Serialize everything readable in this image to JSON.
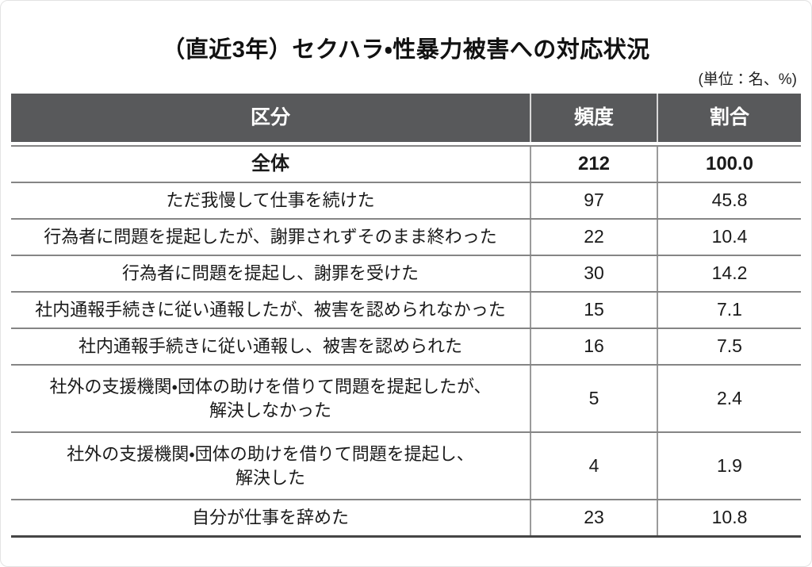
{
  "page": {
    "title": "（直近3年）セクハラ・性暴力被害への対応状況",
    "unit_note": "(単位：名、%)"
  },
  "table": {
    "headers": {
      "category": "区分",
      "frequency": "頻度",
      "ratio": "割合"
    },
    "rows": [
      {
        "label": "全体",
        "freq": "212",
        "pct": "100.0"
      },
      {
        "label": "ただ我慢して仕事を続けた",
        "freq": "97",
        "pct": "45.8"
      },
      {
        "label": "行為者に問題を提起したが、謝罪されずそのまま終わった",
        "freq": "22",
        "pct": "10.4"
      },
      {
        "label": "行為者に問題を提起し、謝罪を受けた",
        "freq": "30",
        "pct": "14.2"
      },
      {
        "label": "社内通報手続きに従い通報したが、被害を認められなかった",
        "freq": "15",
        "pct": "7.1"
      },
      {
        "label": "社内通報手続きに従い通報し、被害を認められた",
        "freq": "16",
        "pct": "7.5"
      },
      {
        "label": "社外の支援機関・団体の助けを借りて問題を提起したが、\n解決しなかった",
        "freq": "5",
        "pct": "2.4"
      },
      {
        "label": "社外の支援機関・団体の助けを借りて問題を提起し、\n解決した",
        "freq": "4",
        "pct": "1.9"
      },
      {
        "label": "自分が仕事を辞めた",
        "freq": "23",
        "pct": "10.8"
      }
    ]
  },
  "colors": {
    "header_bg": "#58595b",
    "header_text": "#ffffff",
    "row_separator": "#858585",
    "bottom_border": "#454545",
    "text": "#1a1a1a"
  },
  "chart_data": {
    "type": "table",
    "title": "（直近3年）セクハラ・性暴力被害への対応状況",
    "unit": "名、%",
    "columns": [
      "区分",
      "頻度",
      "割合"
    ],
    "rows": [
      [
        "全体",
        212,
        100.0
      ],
      [
        "ただ我慢して仕事を続けた",
        97,
        45.8
      ],
      [
        "行為者に問題を提起したが、謝罪されずそのまま終わった",
        22,
        10.4
      ],
      [
        "行為者に問題を提起し、謝罪を受けた",
        30,
        14.2
      ],
      [
        "社内通報手続きに従い通報したが、被害を認められなかった",
        15,
        7.1
      ],
      [
        "社内通報手続きに従い通報し、被害を認められた",
        16,
        7.5
      ],
      [
        "社外の支援機関・団体の助けを借りて問題を提起したが、解決しなかった",
        5,
        2.4
      ],
      [
        "社外の支援機関・団体の助けを借りて問題を提起し、解決した",
        4,
        1.9
      ],
      [
        "自分が仕事を辞めた",
        23,
        10.8
      ]
    ]
  }
}
